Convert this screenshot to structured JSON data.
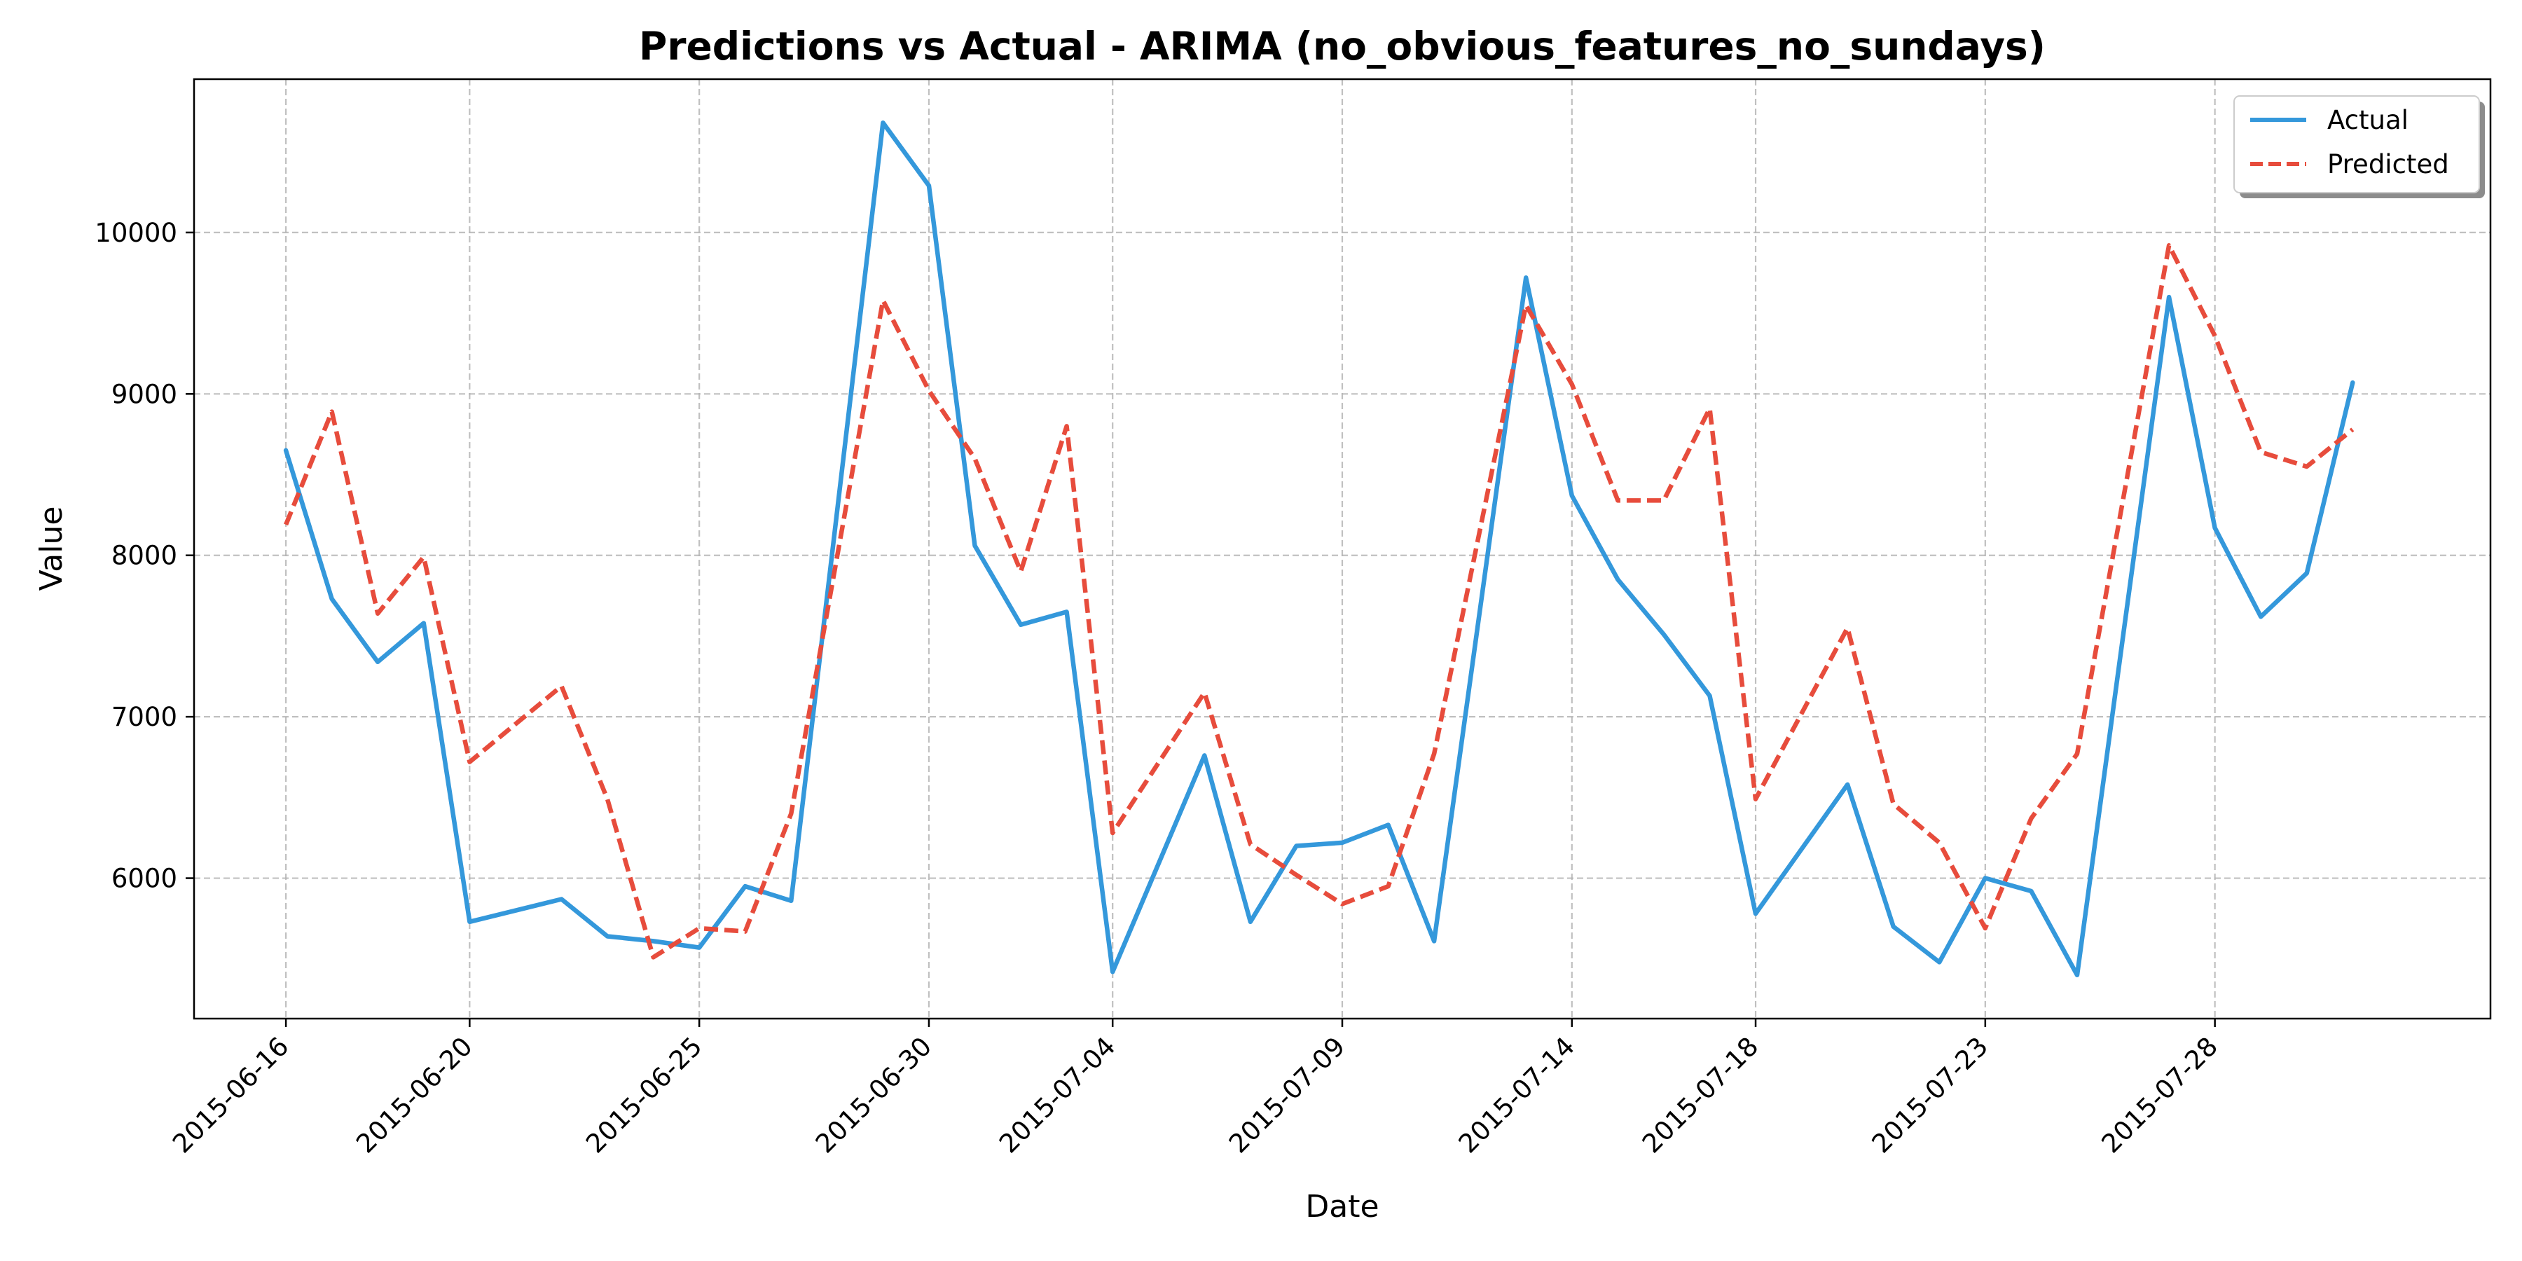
{
  "chart_data": {
    "type": "line",
    "title": "Predictions vs Actual - ARIMA (no_obvious_features_no_sundays)",
    "xlabel": "Date",
    "ylabel": "Value",
    "xlim": [
      "2015-06-14",
      "2015-08-03"
    ],
    "ylim": [
      5130,
      10950
    ],
    "x_ticks": [
      "2015-06-16",
      "2015-06-20",
      "2015-06-25",
      "2015-06-30",
      "2015-07-04",
      "2015-07-09",
      "2015-07-14",
      "2015-07-18",
      "2015-07-23",
      "2015-07-28"
    ],
    "y_ticks": [
      6000,
      7000,
      8000,
      9000,
      10000
    ],
    "grid": true,
    "legend_position": "top-right",
    "x": [
      "2015-06-16",
      "2015-06-17",
      "2015-06-18",
      "2015-06-19",
      "2015-06-20",
      "2015-06-22",
      "2015-06-23",
      "2015-06-24",
      "2015-06-25",
      "2015-06-26",
      "2015-06-27",
      "2015-06-29",
      "2015-06-30",
      "2015-07-01",
      "2015-07-02",
      "2015-07-03",
      "2015-07-04",
      "2015-07-06",
      "2015-07-07",
      "2015-07-08",
      "2015-07-09",
      "2015-07-10",
      "2015-07-11",
      "2015-07-13",
      "2015-07-14",
      "2015-07-15",
      "2015-07-16",
      "2015-07-17",
      "2015-07-18",
      "2015-07-20",
      "2015-07-21",
      "2015-07-22",
      "2015-07-23",
      "2015-07-24",
      "2015-07-25",
      "2015-07-27",
      "2015-07-28",
      "2015-07-29",
      "2015-07-30",
      "2015-07-31"
    ],
    "series": [
      {
        "name": "Actual",
        "color": "#3498db",
        "style": "solid",
        "values": [
          8650,
          7730,
          7340,
          7580,
          5730,
          5870,
          5640,
          5610,
          5570,
          5950,
          5860,
          10680,
          10290,
          8060,
          7570,
          7650,
          5420,
          6760,
          5730,
          6200,
          6220,
          6330,
          5610,
          9720,
          8370,
          7850,
          7510,
          7130,
          5780,
          6580,
          5700,
          5480,
          6000,
          5920,
          5400,
          9600,
          8170,
          7620,
          7890,
          9070
        ]
      },
      {
        "name": "Predicted",
        "color": "#e74c3c",
        "style": "dashed",
        "values": [
          8190,
          8890,
          7640,
          7990,
          6720,
          7190,
          6490,
          5510,
          5690,
          5670,
          6400,
          9580,
          9020,
          8600,
          7900,
          8800,
          6280,
          7150,
          6210,
          6020,
          5840,
          5950,
          6770,
          9550,
          9060,
          8340,
          8340,
          8910,
          6490,
          7550,
          6460,
          6220,
          5690,
          6370,
          6770,
          9920,
          9360,
          8640,
          8550,
          8780
        ]
      }
    ]
  }
}
